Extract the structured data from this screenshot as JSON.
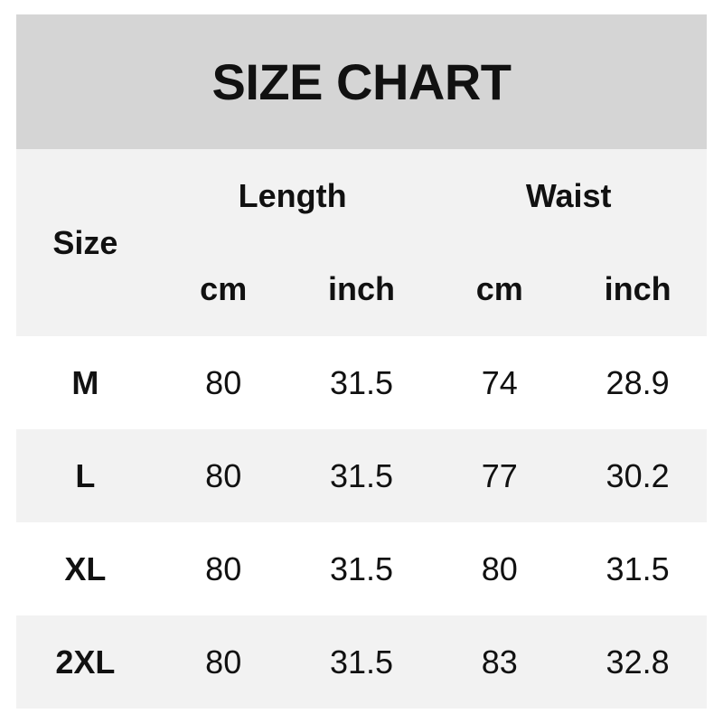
{
  "title": "SIZE CHART",
  "colors": {
    "page_bg": "#ffffff",
    "banner_bg": "#d5d5d5",
    "panel_bg": "#f2f2f2",
    "row_bg": "#ffffff",
    "row_alt_bg": "#f2f2f2",
    "text": "#111111"
  },
  "chart_data": {
    "type": "table",
    "title": "SIZE CHART",
    "size_label": "Size",
    "column_groups": [
      "Length",
      "Waist"
    ],
    "subheaders": [
      "cm",
      "inch",
      "cm",
      "inch"
    ],
    "columns": [
      "Size",
      "Length cm",
      "Length inch",
      "Waist cm",
      "Waist inch"
    ],
    "rows": [
      [
        "M",
        "80",
        "31.5",
        "74",
        "28.9"
      ],
      [
        "L",
        "80",
        "31.5",
        "77",
        "30.2"
      ],
      [
        "XL",
        "80",
        "31.5",
        "80",
        "31.5"
      ],
      [
        "2XL",
        "80",
        "31.5",
        "83",
        "32.8"
      ]
    ]
  }
}
